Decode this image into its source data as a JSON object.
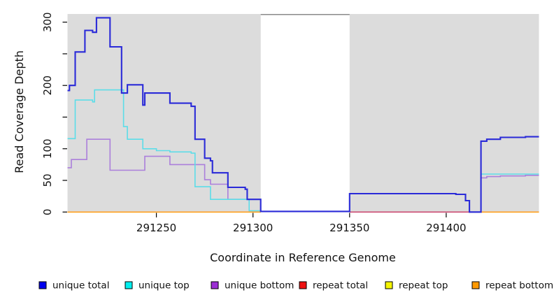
{
  "figure": {
    "background": "#ffffff",
    "panel_background": "#dcdcdc",
    "no_data_band_fill": "#ffffff",
    "no_data_band_top_border": "#8a8a8a"
  },
  "axes": {
    "xlabel": "Coordinate in Reference Genome",
    "ylabel": "Read Coverage Depth",
    "x_ticks": [
      291250,
      291300,
      291350,
      291400
    ],
    "x_tick_labels": [
      "291250",
      "291300",
      "291350",
      "291400"
    ],
    "y_ticks": [
      0,
      50,
      100,
      150,
      200,
      250,
      300
    ],
    "y_tick_labels": [
      "0",
      "50",
      "100",
      "",
      "200",
      "",
      "300"
    ]
  },
  "legend": {
    "items": [
      {
        "label": "unique total",
        "swatch": "#0000ee"
      },
      {
        "label": "unique top",
        "swatch": "#00efef"
      },
      {
        "label": "unique bottom",
        "swatch": "#9c2fd4"
      },
      {
        "label": "repeat total",
        "swatch": "#ee1111"
      },
      {
        "label": "repeat top",
        "swatch": "#f5f500"
      },
      {
        "label": "repeat bottom",
        "swatch": "#ff9900"
      }
    ]
  },
  "chart_data": {
    "type": "step-line",
    "title": "",
    "xlabel": "Coordinate in Reference Genome",
    "ylabel": "Read Coverage Depth",
    "xlim": [
      291204,
      291448
    ],
    "ylim": [
      0,
      313
    ],
    "grid": false,
    "legend_position": "bottom",
    "no_data_region_x": [
      291304,
      291350
    ],
    "draw_order": [
      "repeat_top",
      "repeat_total",
      "repeat_bottom",
      "unique_bottom",
      "unique_top",
      "unique_total"
    ],
    "series": [
      {
        "name": "unique_total",
        "legend_label": "unique total",
        "line_color": "#2a2ad8",
        "line_width": 2.1,
        "points": [
          [
            291204,
            192
          ],
          [
            291205,
            200
          ],
          [
            291208,
            253
          ],
          [
            291213,
            287
          ],
          [
            291217,
            284
          ],
          [
            291219,
            307
          ],
          [
            291226,
            261
          ],
          [
            291232,
            188
          ],
          [
            291235,
            201
          ],
          [
            291243,
            169
          ],
          [
            291244,
            188
          ],
          [
            291257,
            172
          ],
          [
            291268,
            167
          ],
          [
            291270,
            115
          ],
          [
            291275,
            85
          ],
          [
            291278,
            81
          ],
          [
            291279,
            62
          ],
          [
            291287,
            39
          ],
          [
            291296,
            36
          ],
          [
            291297,
            20
          ],
          [
            291304,
            1
          ],
          [
            291350,
            29
          ],
          [
            291405,
            28
          ],
          [
            291410,
            18
          ],
          [
            291412,
            0
          ],
          [
            291418,
            112
          ],
          [
            291421,
            115
          ],
          [
            291428,
            118
          ],
          [
            291441,
            119
          ],
          [
            291448,
            119
          ]
        ]
      },
      {
        "name": "unique_top",
        "legend_label": "unique top",
        "line_color": "#5cdde8",
        "line_width": 1.6,
        "points": [
          [
            291204,
            116
          ],
          [
            291208,
            177
          ],
          [
            291217,
            174
          ],
          [
            291218,
            193
          ],
          [
            291233,
            135
          ],
          [
            291235,
            115
          ],
          [
            291243,
            100
          ],
          [
            291250,
            97
          ],
          [
            291257,
            95
          ],
          [
            291268,
            93
          ],
          [
            291270,
            40
          ],
          [
            291278,
            20
          ],
          [
            291298,
            2
          ],
          [
            291304,
            1
          ],
          [
            291350,
            29
          ],
          [
            291405,
            28
          ],
          [
            291410,
            18
          ],
          [
            291412,
            0
          ],
          [
            291418,
            60
          ],
          [
            291448,
            60
          ]
        ]
      },
      {
        "name": "unique_bottom",
        "legend_label": "unique bottom",
        "line_color": "#ab7fdb",
        "line_width": 1.6,
        "points": [
          [
            291204,
            70
          ],
          [
            291206,
            83
          ],
          [
            291214,
            115
          ],
          [
            291226,
            66
          ],
          [
            291244,
            88
          ],
          [
            291257,
            75
          ],
          [
            291275,
            51
          ],
          [
            291278,
            44
          ],
          [
            291287,
            20
          ],
          [
            291304,
            1
          ],
          [
            291350,
            null
          ],
          [
            291412,
            0
          ],
          [
            291418,
            54
          ],
          [
            291421,
            56
          ],
          [
            291428,
            57
          ],
          [
            291441,
            58
          ],
          [
            291448,
            58
          ]
        ]
      },
      {
        "name": "repeat_total",
        "legend_label": "repeat total",
        "line_color": "#cc4b72",
        "line_width": 1.7,
        "points": [
          [
            291350,
            0
          ],
          [
            291412,
            null
          ]
        ]
      },
      {
        "name": "repeat_top",
        "legend_label": "repeat top",
        "line_color": "#f0f000",
        "line_width": 1.7,
        "points": [
          [
            291204,
            0
          ],
          [
            291304,
            null
          ],
          [
            291412,
            0
          ],
          [
            291448,
            0
          ]
        ]
      },
      {
        "name": "repeat_bottom",
        "legend_label": "repeat bottom",
        "line_color": "#ff9f26",
        "line_width": 1.7,
        "points": [
          [
            291204,
            0
          ],
          [
            291304,
            null
          ],
          [
            291412,
            0
          ],
          [
            291448,
            0
          ]
        ]
      }
    ]
  }
}
